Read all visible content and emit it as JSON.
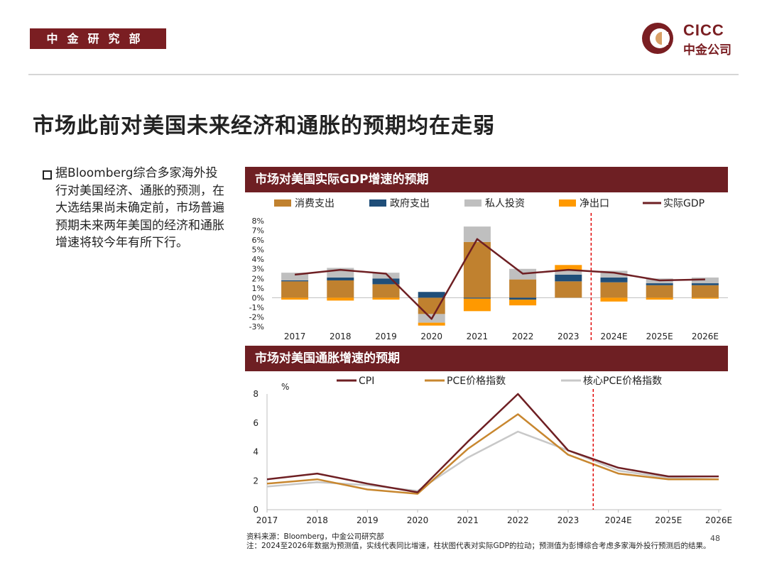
{
  "header": {
    "dept": "中金研究部",
    "logo_en": "CICC",
    "logo_cn": "中金公司",
    "brand_color": "#7a1e22"
  },
  "title": "市场此前对美国未来经济和通胀的预期均在走弱",
  "bullet": "据Bloomberg综合多家海外投行对美国经济、通胀的预测，在大选结果尚未确定前，市场普遍预期未来两年美国的经济和通胀增速将较今年有所下行。",
  "chart_data": [
    {
      "type": "bar",
      "title": "市场对美国实际GDP增速的预期",
      "categories": [
        "2017",
        "2018",
        "2019",
        "2020",
        "2021",
        "2022",
        "2023",
        "2024E",
        "2025E",
        "2026E"
      ],
      "series": [
        {
          "name": "消费支出",
          "color": "#c0812f",
          "values": [
            1.7,
            1.8,
            1.4,
            -1.7,
            5.8,
            1.9,
            1.7,
            1.6,
            1.3,
            1.3
          ]
        },
        {
          "name": "政府支出",
          "color": "#1f4e79",
          "values": [
            0.1,
            0.3,
            0.6,
            0.6,
            -0.1,
            -0.2,
            0.7,
            0.5,
            0.2,
            0.2
          ]
        },
        {
          "name": "私人投资",
          "color": "#bfbfbf",
          "values": [
            0.8,
            1.0,
            0.6,
            -0.9,
            1.6,
            1.1,
            0.4,
            0.7,
            0.5,
            0.6
          ]
        },
        {
          "name": "净出口",
          "color": "#ff9900",
          "values": [
            -0.2,
            -0.3,
            -0.2,
            -0.3,
            -1.3,
            -0.6,
            0.6,
            -0.4,
            -0.2,
            -0.1
          ]
        }
      ],
      "line": {
        "name": "实际GDP",
        "color": "#6e1f23",
        "values": [
          2.4,
          2.9,
          2.5,
          -2.2,
          6.1,
          2.5,
          2.9,
          2.6,
          1.8,
          1.9
        ]
      },
      "ylim": [
        -3,
        8
      ],
      "yticks": [
        "-3%",
        "-2%",
        "-1%",
        "0%",
        "1%",
        "2%",
        "3%",
        "4%",
        "5%",
        "6%",
        "7%",
        "8%"
      ],
      "forecast_divider": "2023/2024E"
    },
    {
      "type": "line",
      "title": "市场对美国通胀增速的预期",
      "categories": [
        "2017",
        "2018",
        "2019",
        "2020",
        "2021",
        "2022",
        "2023",
        "2024E",
        "2025E",
        "2026E"
      ],
      "series": [
        {
          "name": "CPI",
          "color": "#6e1f23",
          "values": [
            2.1,
            2.5,
            1.8,
            1.2,
            4.7,
            8.0,
            4.1,
            2.9,
            2.3,
            2.3
          ]
        },
        {
          "name": "PCE价格指数",
          "color": "#c8872f",
          "values": [
            1.8,
            2.1,
            1.4,
            1.1,
            4.2,
            6.6,
            3.8,
            2.5,
            2.1,
            2.1
          ]
        },
        {
          "name": "核心PCE价格指数",
          "color": "#c8c8c8",
          "values": [
            1.6,
            1.9,
            1.7,
            1.3,
            3.6,
            5.4,
            4.1,
            2.7,
            2.2,
            2.1
          ]
        }
      ],
      "ylabel": "%",
      "ylim": [
        0,
        8
      ],
      "yticks": [
        "0",
        "2",
        "4",
        "6",
        "8"
      ],
      "forecast_divider": "2023/2024E"
    }
  ],
  "footer": {
    "source": "资料来源：Bloomberg，中金公司研究部",
    "note": "注：2024至2026年数据为预测值，实线代表同比增速，柱状图代表对实际GDP的拉动；预测值为彭博综合考虑多家海外投行预测后的结果。",
    "page": "48"
  }
}
